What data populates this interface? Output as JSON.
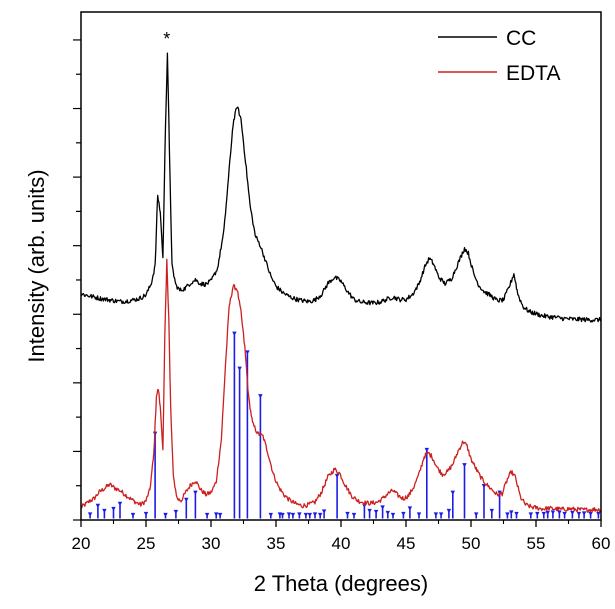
{
  "chart_data": {
    "type": "line",
    "title": "",
    "xlabel": "2 Theta (degrees)",
    "ylabel": "Intensity (arb. units)",
    "xlim": [
      20,
      60
    ],
    "ylim": [
      0,
      100
    ],
    "x_ticks": [
      "20",
      "25",
      "30",
      "35",
      "40",
      "45",
      "50",
      "55",
      "60"
    ],
    "x_tick_values": [
      20,
      25,
      30,
      35,
      40,
      45,
      50,
      55,
      60
    ],
    "y_tick_labels_shown": false,
    "grid": false,
    "legend_position": "top-right",
    "annotation": {
      "text": "*",
      "x": 26.6
    },
    "series": [
      {
        "name": "CC",
        "color": "#000000",
        "points": [
          [
            20.0,
            44.5
          ],
          [
            20.5,
            44.2
          ],
          [
            21.0,
            43.9
          ],
          [
            21.5,
            43.6
          ],
          [
            22.0,
            43.4
          ],
          [
            22.5,
            43.2
          ],
          [
            23.0,
            43.0
          ],
          [
            23.5,
            43.1
          ],
          [
            24.0,
            43.3
          ],
          [
            24.5,
            43.6
          ],
          [
            25.0,
            44.3
          ],
          [
            25.4,
            46.5
          ],
          [
            25.7,
            50.0
          ],
          [
            25.9,
            64.0
          ],
          [
            26.1,
            60.5
          ],
          [
            26.3,
            51.5
          ],
          [
            26.5,
            78.0
          ],
          [
            26.65,
            91.5
          ],
          [
            26.8,
            73.0
          ],
          [
            27.0,
            50.0
          ],
          [
            27.3,
            46.2
          ],
          [
            27.6,
            45.2
          ],
          [
            28.0,
            45.6
          ],
          [
            28.4,
            46.6
          ],
          [
            28.8,
            47.3
          ],
          [
            29.2,
            46.5
          ],
          [
            29.6,
            46.4
          ],
          [
            30.0,
            47.0
          ],
          [
            30.5,
            49.5
          ],
          [
            31.0,
            57.0
          ],
          [
            31.4,
            69.0
          ],
          [
            31.7,
            78.0
          ],
          [
            32.0,
            81.5
          ],
          [
            32.3,
            79.0
          ],
          [
            32.6,
            72.0
          ],
          [
            33.0,
            62.0
          ],
          [
            33.4,
            56.0
          ],
          [
            33.8,
            54.0
          ],
          [
            34.2,
            51.0
          ],
          [
            34.6,
            48.0
          ],
          [
            35.0,
            46.0
          ],
          [
            35.5,
            44.8
          ],
          [
            36.0,
            44.0
          ],
          [
            36.5,
            43.5
          ],
          [
            37.0,
            43.2
          ],
          [
            37.5,
            43.0
          ],
          [
            38.0,
            43.3
          ],
          [
            38.5,
            44.4
          ],
          [
            39.0,
            46.6
          ],
          [
            39.5,
            47.8
          ],
          [
            40.0,
            47.0
          ],
          [
            40.5,
            45.0
          ],
          [
            41.0,
            43.4
          ],
          [
            41.5,
            42.9
          ],
          [
            42.0,
            42.8
          ],
          [
            42.5,
            42.7
          ],
          [
            43.0,
            42.9
          ],
          [
            43.5,
            43.4
          ],
          [
            44.0,
            43.9
          ],
          [
            44.5,
            43.4
          ],
          [
            45.0,
            43.4
          ],
          [
            45.5,
            44.4
          ],
          [
            46.0,
            46.5
          ],
          [
            46.5,
            50.2
          ],
          [
            46.8,
            51.5
          ],
          [
            47.1,
            50.5
          ],
          [
            47.5,
            47.9
          ],
          [
            48.0,
            46.5
          ],
          [
            48.5,
            47.5
          ],
          [
            49.0,
            50.5
          ],
          [
            49.5,
            53.5
          ],
          [
            49.8,
            52.5
          ],
          [
            50.2,
            48.5
          ],
          [
            50.6,
            46.2
          ],
          [
            51.0,
            45.0
          ],
          [
            51.5,
            44.2
          ],
          [
            52.0,
            43.2
          ],
          [
            52.5,
            43.3
          ],
          [
            53.0,
            46.3
          ],
          [
            53.3,
            48.5
          ],
          [
            53.6,
            44.5
          ],
          [
            54.0,
            42.0
          ],
          [
            54.5,
            41.0
          ],
          [
            55.0,
            40.6
          ],
          [
            55.5,
            40.2
          ],
          [
            56.0,
            40.0
          ],
          [
            56.5,
            39.9
          ],
          [
            57.0,
            39.7
          ],
          [
            57.5,
            39.6
          ],
          [
            58.0,
            39.5
          ],
          [
            58.5,
            39.5
          ],
          [
            59.0,
            39.4
          ],
          [
            59.5,
            39.4
          ],
          [
            60.0,
            39.4
          ]
        ]
      },
      {
        "name": "EDTA",
        "color": "#cc1f1f",
        "points": [
          [
            20.0,
            2.5
          ],
          [
            20.3,
            3.0
          ],
          [
            20.7,
            3.8
          ],
          [
            21.0,
            4.2
          ],
          [
            21.4,
            5.5
          ],
          [
            21.8,
            6.2
          ],
          [
            22.2,
            7.0
          ],
          [
            22.6,
            6.3
          ],
          [
            23.0,
            5.8
          ],
          [
            23.4,
            5.0
          ],
          [
            23.8,
            4.2
          ],
          [
            24.2,
            3.5
          ],
          [
            24.6,
            3.0
          ],
          [
            25.0,
            3.8
          ],
          [
            25.3,
            6.0
          ],
          [
            25.6,
            13.0
          ],
          [
            25.8,
            24.5
          ],
          [
            25.95,
            25.8
          ],
          [
            26.1,
            22.0
          ],
          [
            26.3,
            14.0
          ],
          [
            26.45,
            36.0
          ],
          [
            26.6,
            51.0
          ],
          [
            26.75,
            40.0
          ],
          [
            26.9,
            22.0
          ],
          [
            27.1,
            8.5
          ],
          [
            27.4,
            4.2
          ],
          [
            27.7,
            3.8
          ],
          [
            28.0,
            5.2
          ],
          [
            28.4,
            6.8
          ],
          [
            28.8,
            7.8
          ],
          [
            29.2,
            6.0
          ],
          [
            29.6,
            5.0
          ],
          [
            30.0,
            5.4
          ],
          [
            30.4,
            7.5
          ],
          [
            30.8,
            16.0
          ],
          [
            31.1,
            30.0
          ],
          [
            31.4,
            42.0
          ],
          [
            31.7,
            46.0
          ],
          [
            32.0,
            45.5
          ],
          [
            32.3,
            41.0
          ],
          [
            32.6,
            34.0
          ],
          [
            32.9,
            24.0
          ],
          [
            33.2,
            19.0
          ],
          [
            33.6,
            17.0
          ],
          [
            34.0,
            16.5
          ],
          [
            34.4,
            13.0
          ],
          [
            34.8,
            9.0
          ],
          [
            35.2,
            6.5
          ],
          [
            35.6,
            5.0
          ],
          [
            36.0,
            4.0
          ],
          [
            36.5,
            3.2
          ],
          [
            37.0,
            2.8
          ],
          [
            37.5,
            3.0
          ],
          [
            38.0,
            3.5
          ],
          [
            38.5,
            5.5
          ],
          [
            39.0,
            8.5
          ],
          [
            39.5,
            10.0
          ],
          [
            39.9,
            9.2
          ],
          [
            40.3,
            7.0
          ],
          [
            40.8,
            4.8
          ],
          [
            41.3,
            3.8
          ],
          [
            41.8,
            3.4
          ],
          [
            42.3,
            3.3
          ],
          [
            42.8,
            3.5
          ],
          [
            43.2,
            4.2
          ],
          [
            43.6,
            5.2
          ],
          [
            44.0,
            5.8
          ],
          [
            44.4,
            4.8
          ],
          [
            44.8,
            4.2
          ],
          [
            45.2,
            4.8
          ],
          [
            45.6,
            6.5
          ],
          [
            46.0,
            9.0
          ],
          [
            46.4,
            12.5
          ],
          [
            46.7,
            13.2
          ],
          [
            47.0,
            12.5
          ],
          [
            47.4,
            10.3
          ],
          [
            47.8,
            9.0
          ],
          [
            48.2,
            9.5
          ],
          [
            48.6,
            11.0
          ],
          [
            49.0,
            13.5
          ],
          [
            49.4,
            15.5
          ],
          [
            49.7,
            14.5
          ],
          [
            50.0,
            12.0
          ],
          [
            50.4,
            10.0
          ],
          [
            50.8,
            8.2
          ],
          [
            51.2,
            7.0
          ],
          [
            51.6,
            6.0
          ],
          [
            52.0,
            5.0
          ],
          [
            52.4,
            5.2
          ],
          [
            52.8,
            8.0
          ],
          [
            53.1,
            9.5
          ],
          [
            53.4,
            8.5
          ],
          [
            53.8,
            4.5
          ],
          [
            54.2,
            3.0
          ],
          [
            54.6,
            2.6
          ],
          [
            55.0,
            2.4
          ],
          [
            55.5,
            2.2
          ],
          [
            56.0,
            2.3
          ],
          [
            56.5,
            2.2
          ],
          [
            57.0,
            2.1
          ],
          [
            57.5,
            2.2
          ],
          [
            58.0,
            2.1
          ],
          [
            58.5,
            2.0
          ],
          [
            59.0,
            2.0
          ],
          [
            59.5,
            2.1
          ],
          [
            60.0,
            2.0
          ]
        ]
      },
      {
        "name": "",
        "color": "#1c1ce6",
        "style": "reference-sticks",
        "points": [
          [
            20.7,
            0.9
          ],
          [
            21.3,
            2.6
          ],
          [
            21.8,
            1.6
          ],
          [
            22.5,
            2.0
          ],
          [
            23.0,
            3.0
          ],
          [
            24.0,
            0.8
          ],
          [
            25.0,
            1.0
          ],
          [
            25.7,
            16.8
          ],
          [
            26.5,
            0.8
          ],
          [
            27.3,
            1.4
          ],
          [
            28.1,
            3.8
          ],
          [
            28.8,
            5.2
          ],
          [
            29.7,
            0.8
          ],
          [
            30.4,
            0.9
          ],
          [
            30.7,
            0.8
          ],
          [
            31.8,
            36.5
          ],
          [
            32.2,
            29.6
          ],
          [
            32.8,
            32.8
          ],
          [
            33.8,
            24.2
          ],
          [
            34.6,
            0.8
          ],
          [
            35.3,
            0.9
          ],
          [
            35.5,
            0.8
          ],
          [
            36.0,
            0.9
          ],
          [
            36.3,
            0.8
          ],
          [
            36.8,
            0.9
          ],
          [
            37.3,
            0.8
          ],
          [
            37.6,
            0.8
          ],
          [
            38.0,
            0.9
          ],
          [
            38.4,
            0.8
          ],
          [
            38.7,
            1.5
          ],
          [
            39.7,
            8.5
          ],
          [
            40.5,
            1.0
          ],
          [
            41.0,
            0.8
          ],
          [
            41.8,
            2.6
          ],
          [
            42.2,
            1.6
          ],
          [
            42.7,
            1.4
          ],
          [
            43.2,
            2.3
          ],
          [
            43.6,
            1.2
          ],
          [
            44.0,
            0.8
          ],
          [
            44.8,
            1.0
          ],
          [
            45.3,
            2.1
          ],
          [
            46.0,
            0.9
          ],
          [
            46.6,
            13.6
          ],
          [
            47.3,
            0.9
          ],
          [
            47.7,
            0.9
          ],
          [
            48.3,
            1.6
          ],
          [
            48.6,
            5.2
          ],
          [
            49.5,
            10.6
          ],
          [
            50.4,
            0.9
          ],
          [
            51.0,
            6.5
          ],
          [
            51.6,
            1.6
          ],
          [
            52.2,
            5.2
          ],
          [
            52.8,
            0.9
          ],
          [
            53.1,
            1.3
          ],
          [
            53.5,
            1.0
          ],
          [
            54.6,
            0.9
          ],
          [
            55.1,
            1.0
          ],
          [
            55.6,
            1.0
          ],
          [
            55.9,
            1.2
          ],
          [
            56.3,
            1.3
          ],
          [
            56.8,
            1.3
          ],
          [
            57.2,
            1.0
          ],
          [
            57.8,
            1.2
          ],
          [
            58.3,
            1.0
          ],
          [
            58.7,
            1.1
          ],
          [
            59.2,
            1.0
          ],
          [
            59.8,
            1.0
          ]
        ]
      }
    ]
  }
}
